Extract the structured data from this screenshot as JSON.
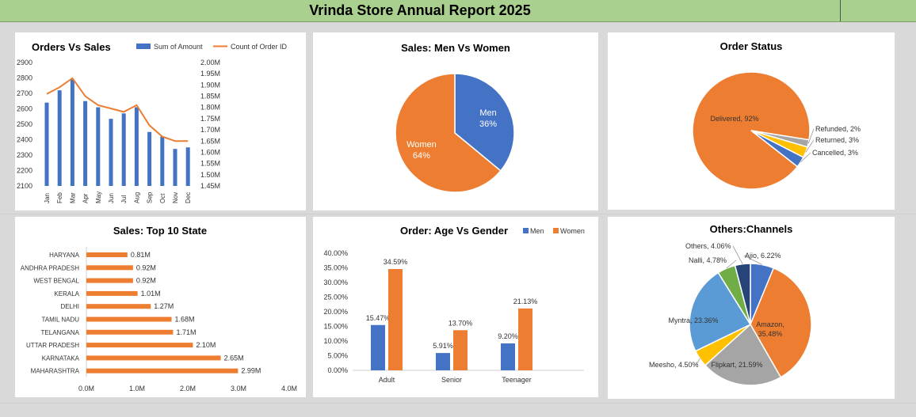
{
  "report": {
    "title": "Vrinda Store Annual Report 2025"
  },
  "colors": {
    "blue": "#4472c4",
    "orange": "#ed7d31",
    "gray": "#a5a5a5",
    "yellow": "#ffc000",
    "lightblue": "#5b9bd5",
    "green": "#70ad47",
    "navy": "#264478"
  },
  "chart_data": [
    {
      "type": "bar",
      "title": "Orders Vs Sales",
      "categories": [
        "Jan",
        "Feb",
        "Mar",
        "Apr",
        "May",
        "Jun",
        "Jul",
        "Aug",
        "Sep",
        "Oct",
        "Nov",
        "Dec"
      ],
      "series": [
        {
          "name": "Sum of Amount",
          "type": "bar",
          "values": [
            2640,
            2720,
            2790,
            2650,
            2610,
            2535,
            2570,
            2610,
            2450,
            2420,
            2340,
            2350
          ]
        },
        {
          "name": "Count of Order ID",
          "type": "line",
          "values": [
            1.86,
            1.89,
            1.93,
            1.85,
            1.81,
            1.795,
            1.78,
            1.81,
            1.72,
            1.67,
            1.65,
            1.65
          ]
        }
      ],
      "ylim": [
        2100,
        2900
      ],
      "yticks": [
        "2900",
        "2800",
        "2700",
        "2600",
        "2500",
        "2400",
        "2300",
        "2200",
        "2100"
      ],
      "y2lim": [
        1.45,
        2.0
      ],
      "y2ticks": [
        "2.00M",
        "1.95M",
        "1.90M",
        "1.85M",
        "1.80M",
        "1.75M",
        "1.70M",
        "1.65M",
        "1.60M",
        "1.55M",
        "1.50M",
        "1.45M"
      ],
      "legend": "top"
    },
    {
      "type": "pie",
      "title": "Sales: Men Vs Women",
      "slices": [
        {
          "label": "Men",
          "value": 36,
          "pct": "36%"
        },
        {
          "label": "Women",
          "value": 64,
          "pct": "64%"
        }
      ]
    },
    {
      "type": "pie",
      "title": "Order Status",
      "slices": [
        {
          "label": "Delivered, 92%",
          "value": 92
        },
        {
          "label": "Refunded, 2%",
          "value": 2
        },
        {
          "label": "Returned, 3%",
          "value": 3
        },
        {
          "label": "Cancelled, 3%",
          "value": 3
        }
      ]
    },
    {
      "type": "bar",
      "orientation": "horizontal",
      "title": "Sales: Top 10 State",
      "categories": [
        "HARYANA",
        "ANDHRA PRADESH",
        "WEST BENGAL",
        "KERALA",
        "DELHI",
        "TAMIL NADU",
        "TELANGANA",
        "UTTAR PRADESH",
        "KARNATAKA",
        "MAHARASHTRA"
      ],
      "values": [
        0.81,
        0.92,
        0.92,
        1.01,
        1.27,
        1.68,
        1.71,
        2.1,
        2.65,
        2.99
      ],
      "labels": [
        "0.81M",
        "0.92M",
        "0.92M",
        "1.01M",
        "1.27M",
        "1.68M",
        "1.71M",
        "2.10M",
        "2.65M",
        "2.99M"
      ],
      "xlim": [
        0,
        4
      ],
      "xticks": [
        "0.0M",
        "1.0M",
        "2.0M",
        "3.0M",
        "4.0M"
      ]
    },
    {
      "type": "bar",
      "title": "Order: Age Vs Gender",
      "categories": [
        "Adult",
        "Senior",
        "Teenager"
      ],
      "series": [
        {
          "name": "Men",
          "values": [
            15.47,
            5.91,
            9.2
          ],
          "labels": [
            "15.47%",
            "5.91%",
            "9.20%"
          ]
        },
        {
          "name": "Women",
          "values": [
            34.59,
            13.7,
            21.13
          ],
          "labels": [
            "34.59%",
            "13.70%",
            "21.13%"
          ]
        }
      ],
      "ylim": [
        0,
        40
      ],
      "yticks": [
        "40.00%",
        "35.00%",
        "30.00%",
        "25.00%",
        "20.00%",
        "15.00%",
        "10.00%",
        "5.00%",
        "0.00%"
      ],
      "legend": "top-right"
    },
    {
      "type": "pie",
      "title": "Others:Channels",
      "slices": [
        {
          "label": "Ajio, 6.22%",
          "value": 6.22
        },
        {
          "label": "Amazon, 35.48%",
          "value": 35.48
        },
        {
          "label": "Flipkart, 21.59%",
          "value": 21.59
        },
        {
          "label": "Meesho, 4.50%",
          "value": 4.5
        },
        {
          "label": "Myntra, 23.36%",
          "value": 23.36
        },
        {
          "label": "Nalli, 4.78%",
          "value": 4.78
        },
        {
          "label": "Others, 4.06%",
          "value": 4.06
        }
      ]
    }
  ]
}
